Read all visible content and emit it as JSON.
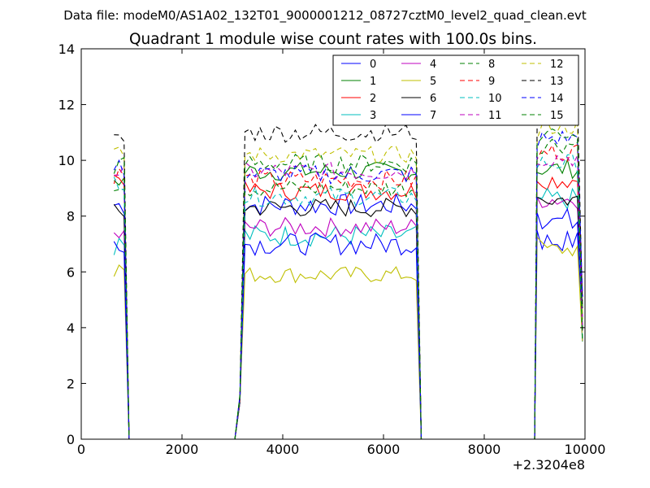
{
  "header": "Data file: modeM0/AS1A02_132T01_9000001212_08727cztM0_level2_quad_clean.evt",
  "chart_data": {
    "type": "line",
    "title": "Quadrant 1 module wise count rates with 100.0s bins.",
    "xlabel": "",
    "ylabel": "",
    "x_offset_label": "+2.3204e8",
    "xlim": [
      0,
      10000
    ],
    "ylim": [
      0,
      14
    ],
    "x_ticks": [
      0,
      2000,
      4000,
      6000,
      8000,
      10000
    ],
    "y_ticks": [
      0,
      2,
      4,
      6,
      8,
      10,
      12,
      14
    ],
    "grid": false,
    "legend_placement": "top-right",
    "legend_columns": 4,
    "segments": [
      {
        "start": 650,
        "step": 100,
        "count": 3
      },
      {
        "start": 3250,
        "step": 100,
        "count": 35
      },
      {
        "start": 9150,
        "step": 100,
        "count": 8
      }
    ],
    "series": [
      {
        "name": "0",
        "color": "#0000ff",
        "dash": false,
        "levels": [
          8.4,
          8.4,
          7.1
        ],
        "noise": 0.4
      },
      {
        "name": "1",
        "color": "#008000",
        "dash": false,
        "levels": [
          9.3,
          9.6,
          9.7
        ],
        "noise": 0.35
      },
      {
        "name": "2",
        "color": "#ff0000",
        "dash": false,
        "levels": [
          9.4,
          8.9,
          9.3
        ],
        "noise": 0.35
      },
      {
        "name": "3",
        "color": "#00bfbf",
        "dash": false,
        "levels": [
          7.0,
          7.3,
          8.6
        ],
        "noise": 0.4
      },
      {
        "name": "4",
        "color": "#bf00bf",
        "dash": false,
        "levels": [
          7.3,
          7.6,
          8.6
        ],
        "noise": 0.35
      },
      {
        "name": "5",
        "color": "#bfbf00",
        "dash": false,
        "levels": [
          6.1,
          5.9,
          6.8
        ],
        "noise": 0.3
      },
      {
        "name": "6",
        "color": "#000000",
        "dash": false,
        "levels": [
          8.1,
          8.3,
          8.6
        ],
        "noise": 0.35
      },
      {
        "name": "7",
        "color": "#0000ff",
        "dash": false,
        "levels": [
          7.1,
          7.0,
          7.9
        ],
        "noise": 0.4
      },
      {
        "name": "8",
        "color": "#008000",
        "dash": true,
        "levels": [
          9.2,
          9.0,
          10.6
        ],
        "noise": 0.35
      },
      {
        "name": "9",
        "color": "#ff0000",
        "dash": true,
        "levels": [
          9.5,
          9.3,
          10.3
        ],
        "noise": 0.35
      },
      {
        "name": "10",
        "color": "#00bfbf",
        "dash": true,
        "levels": [
          9.3,
          8.7,
          9.9
        ],
        "noise": 0.35
      },
      {
        "name": "11",
        "color": "#bf00bf",
        "dash": true,
        "levels": [
          9.6,
          9.6,
          10.1
        ],
        "noise": 0.35
      },
      {
        "name": "12",
        "color": "#bfbf00",
        "dash": true,
        "levels": [
          10.2,
          10.2,
          11.2
        ],
        "noise": 0.3
      },
      {
        "name": "13",
        "color": "#000000",
        "dash": true,
        "levels": [
          10.7,
          11.0,
          12.0
        ],
        "noise": 0.35
      },
      {
        "name": "14",
        "color": "#0000ff",
        "dash": true,
        "levels": [
          9.7,
          9.5,
          10.8
        ],
        "noise": 0.35
      },
      {
        "name": "15",
        "color": "#008000",
        "dash": true,
        "levels": [
          9.8,
          9.9,
          11.0
        ],
        "noise": 0.35
      }
    ]
  }
}
